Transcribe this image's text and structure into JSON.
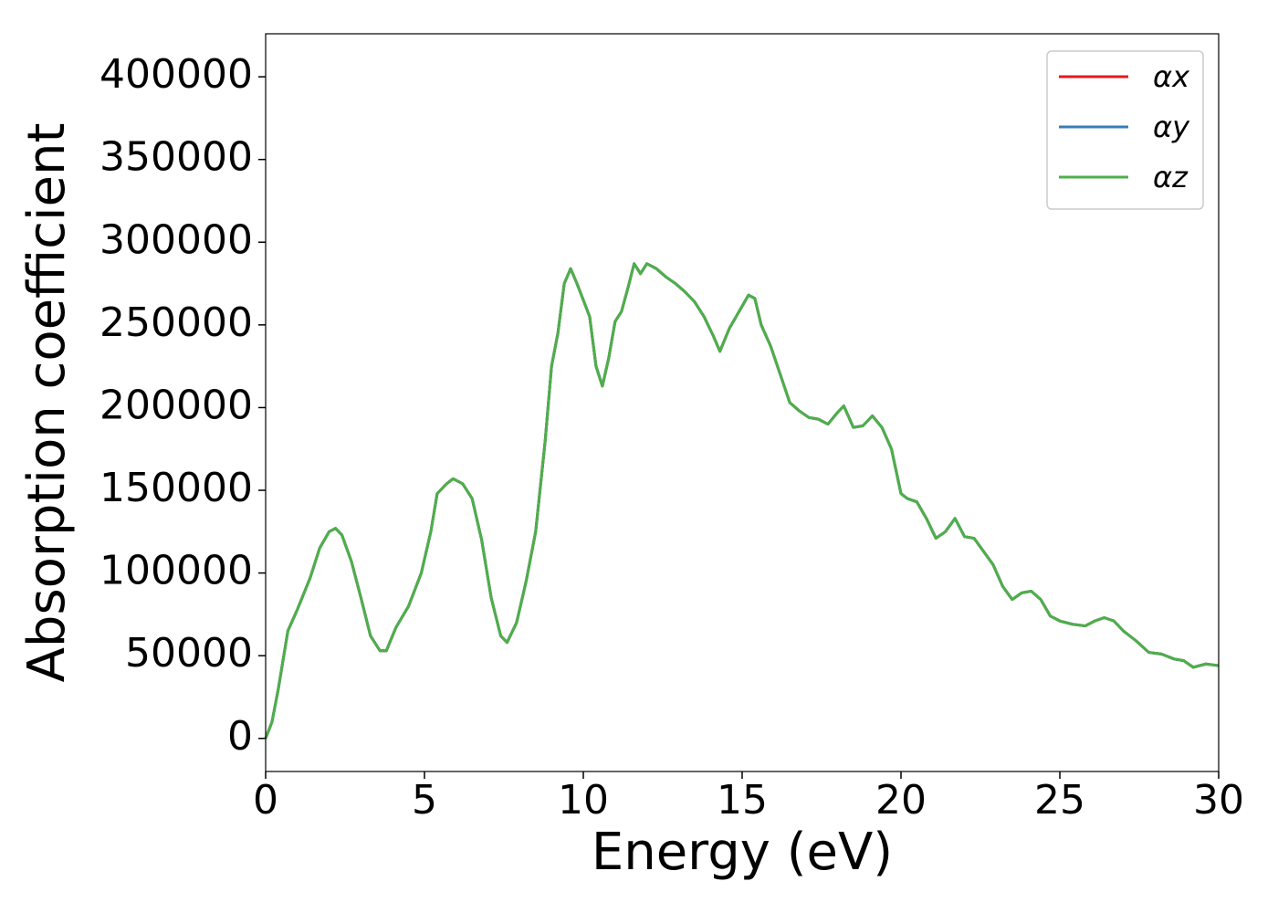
{
  "chart_data": {
    "type": "line",
    "xlabel": "Energy (eV)",
    "ylabel": "Absorption coefficient",
    "x": [
      0,
      0.2,
      0.4,
      0.7,
      1.0,
      1.4,
      1.7,
      2.0,
      2.2,
      2.4,
      2.7,
      3.0,
      3.3,
      3.6,
      3.8,
      4.1,
      4.5,
      4.9,
      5.2,
      5.4,
      5.7,
      5.9,
      6.2,
      6.5,
      6.8,
      7.1,
      7.4,
      7.6,
      7.9,
      8.2,
      8.5,
      8.8,
      9.0,
      9.2,
      9.4,
      9.6,
      9.8,
      10.0,
      10.2,
      10.4,
      10.6,
      10.8,
      11.0,
      11.2,
      11.4,
      11.6,
      11.8,
      12.0,
      12.3,
      12.6,
      12.9,
      13.2,
      13.5,
      13.8,
      14.1,
      14.3,
      14.6,
      14.9,
      15.2,
      15.4,
      15.6,
      15.9,
      16.2,
      16.5,
      16.8,
      17.1,
      17.4,
      17.7,
      18.0,
      18.2,
      18.5,
      18.8,
      19.1,
      19.4,
      19.7,
      20.0,
      20.2,
      20.5,
      20.8,
      21.1,
      21.4,
      21.7,
      22.0,
      22.3,
      22.6,
      22.9,
      23.2,
      23.5,
      23.8,
      24.1,
      24.4,
      24.7,
      25.0,
      25.4,
      25.8,
      26.1,
      26.4,
      26.7,
      27.0,
      27.4,
      27.8,
      28.2,
      28.6,
      28.9,
      29.2,
      29.6,
      30.0
    ],
    "series": [
      {
        "name": "αx",
        "color": "#e41a1c",
        "values": [
          0,
          10000,
          30000,
          65000,
          78000,
          97000,
          115000,
          125000,
          127000,
          123000,
          107000,
          85000,
          62000,
          53000,
          53000,
          67000,
          80000,
          100000,
          125000,
          148000,
          154000,
          157000,
          154000,
          145000,
          120000,
          85000,
          62000,
          58000,
          70000,
          95000,
          125000,
          180000,
          225000,
          245000,
          275000,
          284000,
          275000,
          265000,
          255000,
          225000,
          213000,
          230000,
          252000,
          258000,
          272000,
          287000,
          281000,
          287000,
          284000,
          279000,
          275000,
          270000,
          264000,
          255000,
          243000,
          234000,
          248000,
          258000,
          268000,
          266000,
          250000,
          237000,
          220000,
          203000,
          198000,
          194000,
          193000,
          190000,
          197000,
          201000,
          188000,
          189000,
          195000,
          188000,
          175000,
          148000,
          145000,
          143000,
          133000,
          121000,
          125000,
          133000,
          122000,
          121000,
          113000,
          105000,
          92000,
          84000,
          88000,
          89000,
          84000,
          74000,
          71000,
          69000,
          68000,
          71000,
          73000,
          71000,
          65000,
          59000,
          52000,
          51000,
          48000,
          47000,
          43000,
          45000,
          44000
        ]
      },
      {
        "name": "αy",
        "color": "#377eb8",
        "values": [
          0,
          10000,
          30000,
          65000,
          78000,
          97000,
          115000,
          125000,
          127000,
          123000,
          107000,
          85000,
          62000,
          53000,
          53000,
          67000,
          80000,
          100000,
          125000,
          148000,
          154000,
          157000,
          154000,
          145000,
          120000,
          85000,
          62000,
          58000,
          70000,
          95000,
          125000,
          180000,
          225000,
          245000,
          275000,
          284000,
          275000,
          265000,
          255000,
          225000,
          213000,
          230000,
          252000,
          258000,
          272000,
          287000,
          281000,
          287000,
          284000,
          279000,
          275000,
          270000,
          264000,
          255000,
          243000,
          234000,
          248000,
          258000,
          268000,
          266000,
          250000,
          237000,
          220000,
          203000,
          198000,
          194000,
          193000,
          190000,
          197000,
          201000,
          188000,
          189000,
          195000,
          188000,
          175000,
          148000,
          145000,
          143000,
          133000,
          121000,
          125000,
          133000,
          122000,
          121000,
          113000,
          105000,
          92000,
          84000,
          88000,
          89000,
          84000,
          74000,
          71000,
          69000,
          68000,
          71000,
          73000,
          71000,
          65000,
          59000,
          52000,
          51000,
          48000,
          47000,
          43000,
          45000,
          44000
        ]
      },
      {
        "name": "αz",
        "color": "#4daf4a",
        "values": [
          0,
          10000,
          30000,
          65000,
          78000,
          97000,
          115000,
          125000,
          127000,
          123000,
          107000,
          85000,
          62000,
          53000,
          53000,
          67000,
          80000,
          100000,
          125000,
          148000,
          154000,
          157000,
          154000,
          145000,
          120000,
          85000,
          62000,
          58000,
          70000,
          95000,
          125000,
          180000,
          225000,
          245000,
          275000,
          284000,
          275000,
          265000,
          255000,
          225000,
          213000,
          230000,
          252000,
          258000,
          272000,
          287000,
          281000,
          287000,
          284000,
          279000,
          275000,
          270000,
          264000,
          255000,
          243000,
          234000,
          248000,
          258000,
          268000,
          266000,
          250000,
          237000,
          220000,
          203000,
          198000,
          194000,
          193000,
          190000,
          197000,
          201000,
          188000,
          189000,
          195000,
          188000,
          175000,
          148000,
          145000,
          143000,
          133000,
          121000,
          125000,
          133000,
          122000,
          121000,
          113000,
          105000,
          92000,
          84000,
          88000,
          89000,
          84000,
          74000,
          71000,
          69000,
          68000,
          71000,
          73000,
          71000,
          65000,
          59000,
          52000,
          51000,
          48000,
          47000,
          43000,
          45000,
          44000
        ]
      }
    ],
    "xlim": [
      0,
      30
    ],
    "xticks": [
      0,
      5,
      10,
      15,
      20,
      25,
      30
    ],
    "ylim": [
      -20000,
      426000
    ],
    "yticks": [
      0,
      50000,
      100000,
      150000,
      200000,
      250000,
      300000,
      350000,
      400000
    ],
    "grid": false,
    "legend": "upper right"
  }
}
